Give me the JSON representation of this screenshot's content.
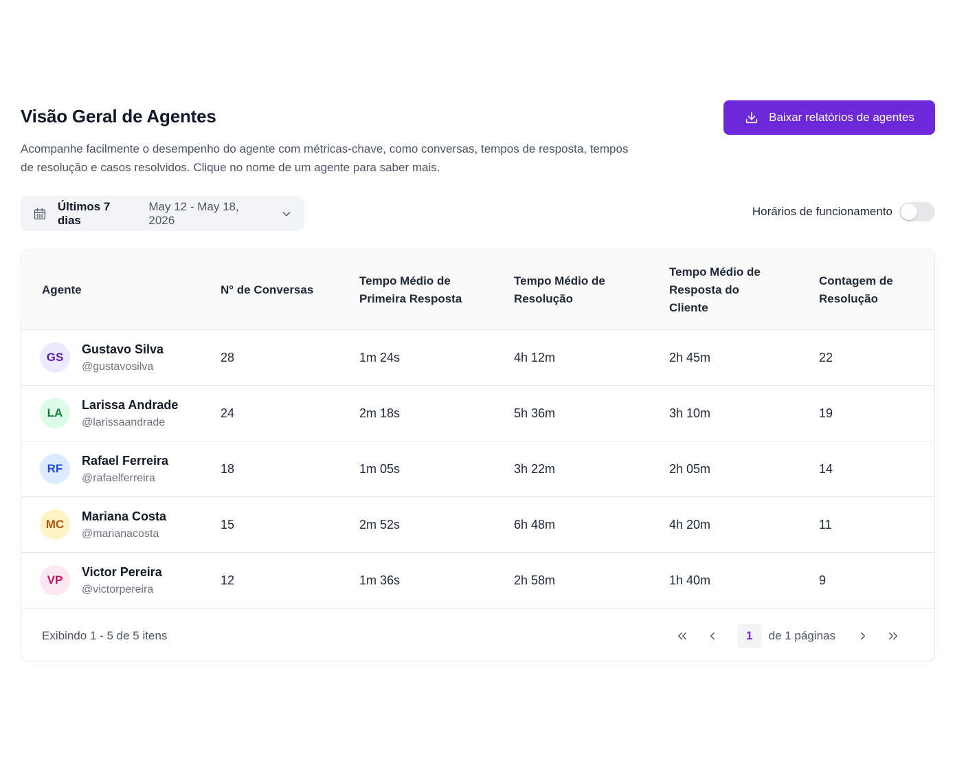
{
  "header": {
    "title": "Visão Geral de Agentes",
    "description": "Acompanhe facilmente o desempenho do agente com métricas-chave, como conversas, tempos de resposta, tempos de resolução e casos resolvidos. Clique no nome de um agente para saber mais.",
    "download_button": "Baixar relatórios de agentes"
  },
  "filters": {
    "date_range_label": "Últimos 7 dias",
    "date_range_value": "May 12 - May 18, 2026",
    "business_hours_label": "Horários de funcionamento",
    "business_hours_enabled": false
  },
  "table": {
    "columns": [
      "Agente",
      "N° de Conversas",
      "Tempo Médio de Primeira Resposta",
      "Tempo Médio de Resolução",
      "Tempo Médio de Resposta do Cliente",
      "Contagem de Resolução"
    ],
    "rows": [
      {
        "initials": "GS",
        "name": "Gustavo Silva",
        "handle": "@gustavosilva",
        "conversations": "28",
        "first_response": "1m 24s",
        "resolution": "4h 12m",
        "customer_response": "2h 45m",
        "resolution_count": "22",
        "avatar_bg": "#ede9fe",
        "avatar_fg": "#5b21b6"
      },
      {
        "initials": "LA",
        "name": "Larissa Andrade",
        "handle": "@larissaandrade",
        "conversations": "24",
        "first_response": "2m 18s",
        "resolution": "5h 36m",
        "customer_response": "3h 10m",
        "resolution_count": "19",
        "avatar_bg": "#dcfce7",
        "avatar_fg": "#15803d"
      },
      {
        "initials": "RF",
        "name": "Rafael Ferreira",
        "handle": "@rafaelferreira",
        "conversations": "18",
        "first_response": "1m 05s",
        "resolution": "3h 22m",
        "customer_response": "2h 05m",
        "resolution_count": "14",
        "avatar_bg": "#dbeafe",
        "avatar_fg": "#1d4ed8"
      },
      {
        "initials": "MC",
        "name": "Mariana Costa",
        "handle": "@marianacosta",
        "conversations": "15",
        "first_response": "2m 52s",
        "resolution": "6h 48m",
        "customer_response": "4h 20m",
        "resolution_count": "11",
        "avatar_bg": "#fef3c7",
        "avatar_fg": "#b45309"
      },
      {
        "initials": "VP",
        "name": "Victor Pereira",
        "handle": "@victorpereira",
        "conversations": "12",
        "first_response": "1m 36s",
        "resolution": "2h 58m",
        "customer_response": "1h 40m",
        "resolution_count": "9",
        "avatar_bg": "#fce7f3",
        "avatar_fg": "#be185d"
      }
    ]
  },
  "pagination": {
    "summary": "Exibindo 1 - 5 de 5 itens",
    "current_page": "1",
    "of_pages": "de 1 páginas"
  },
  "icons": {
    "download": "download-icon",
    "calendar": "calendar-icon",
    "chevron": "chevron-down-icon",
    "first": "chevrons-left-icon",
    "prev": "chevron-left-icon",
    "next": "chevron-right-icon",
    "last": "chevrons-right-icon"
  },
  "colors": {
    "accent": "#6d28d9"
  }
}
